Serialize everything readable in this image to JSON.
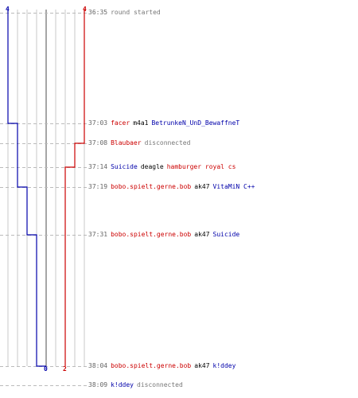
{
  "colors": {
    "red": "#cc0000",
    "blue": "#0000aa",
    "grid": "#c8c8c8",
    "center": "#888888",
    "dash": "#bbbbbb"
  },
  "scores": {
    "blue_start": "4",
    "red_start": "4",
    "blue_end": "0",
    "red_end": "2"
  },
  "events": [
    {
      "time": "36:35",
      "type": "message",
      "text": "round started"
    },
    {
      "time": "37:03",
      "type": "kill",
      "killer": "facer",
      "killer_team": "red",
      "weapon": "m4a1",
      "victim": "BetrunkeN_UnD_BewaffneT",
      "victim_team": "blue"
    },
    {
      "time": "37:08",
      "type": "disconnect",
      "player": "Blaubaer",
      "player_team": "red",
      "text": "disconnected"
    },
    {
      "time": "37:14",
      "type": "kill",
      "killer": "Suicide",
      "killer_team": "blue",
      "weapon": "deagle",
      "victim": "hamburger royal cs",
      "victim_team": "red"
    },
    {
      "time": "37:19",
      "type": "kill",
      "killer": "bobo.spielt.gerne.bob",
      "killer_team": "red",
      "weapon": "ak47",
      "victim": "VitaMiN C++",
      "victim_team": "blue"
    },
    {
      "time": "37:31",
      "type": "kill",
      "killer": "bobo.spielt.gerne.bob",
      "killer_team": "red",
      "weapon": "ak47",
      "victim": "Suicide",
      "victim_team": "blue"
    },
    {
      "time": "38:04",
      "type": "kill",
      "killer": "bobo.spielt.gerne.bob",
      "killer_team": "red",
      "weapon": "ak47",
      "victim": "k!ddey",
      "victim_team": "blue"
    },
    {
      "time": "38:09",
      "type": "disconnect",
      "player": "k!ddey",
      "player_team": "blue",
      "text": "disconnected"
    }
  ]
}
